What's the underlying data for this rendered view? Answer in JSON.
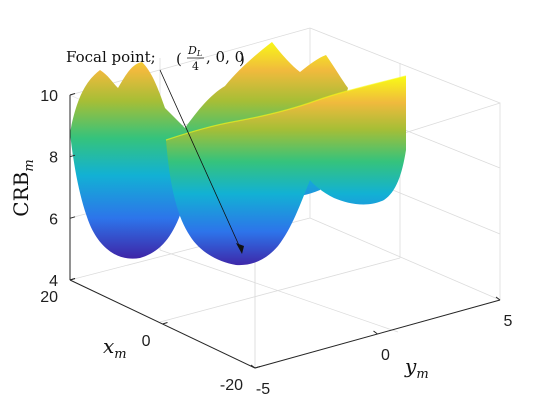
{
  "chart_data": {
    "type": "surface3d",
    "x_axis": {
      "label": "x",
      "label_sub": "m",
      "ticks": [
        20,
        0,
        -20
      ],
      "range": [
        -20,
        20
      ]
    },
    "y_axis": {
      "label": "y",
      "label_sub": "m",
      "ticks": [
        -5,
        0,
        5
      ],
      "range": [
        -5,
        5
      ]
    },
    "z_axis": {
      "label": "CRB",
      "label_sub": "m",
      "ticks": [
        4,
        6,
        8,
        10
      ],
      "range": [
        4,
        10
      ]
    },
    "grid": true,
    "colormap": "parula",
    "surface_description_values": {
      "minimum_crb": 4.5,
      "minimum_location_x": 0,
      "minimum_location_y": 0,
      "max_shown": 10
    },
    "annotation": {
      "text_prefix": "Focal point; ",
      "point": "(D_L/4, 0, 0)",
      "frac_num_main": "D",
      "frac_num_sub": "L",
      "frac_den": "4",
      "tail": ", 0, 0"
    }
  },
  "colors": {
    "parula_low": "#3e26a8",
    "parula_mid": "#22c4a8",
    "parula_high": "#f9fb15"
  }
}
